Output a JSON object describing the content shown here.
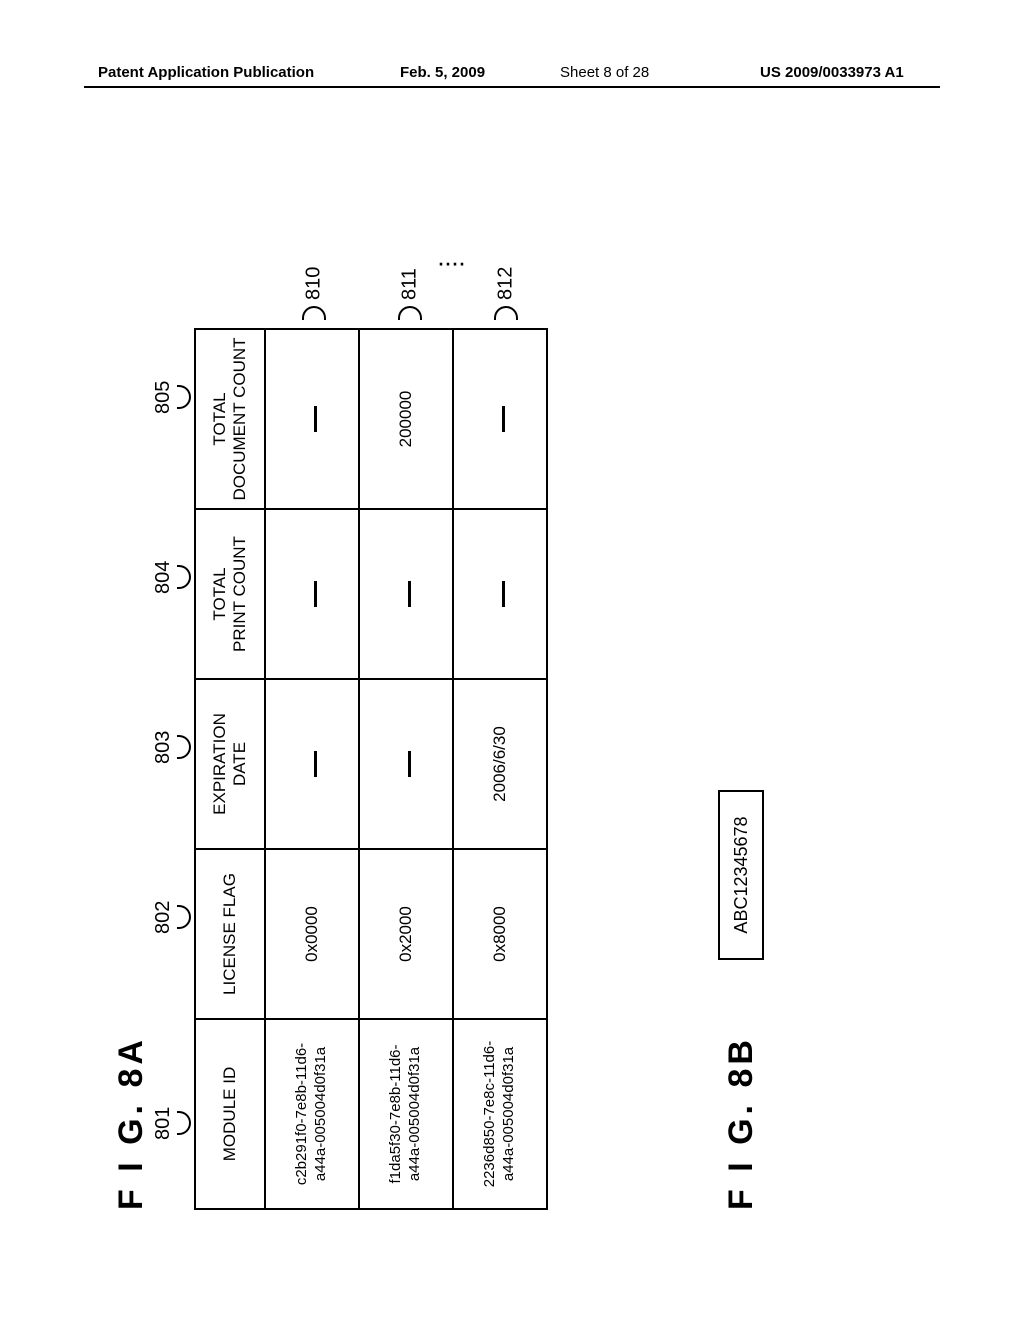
{
  "header": {
    "publication_label": "Patent Application Publication",
    "date": "Feb. 5, 2009",
    "sheet": "Sheet 8 of 28",
    "pub_number": "US 2009/0033973 A1"
  },
  "figA": {
    "title": "F I G.  8A",
    "col_labels": {
      "c1": "801",
      "c2": "802",
      "c3": "803",
      "c4": "804",
      "c5": "805"
    },
    "headers": {
      "module": "MODULE ID",
      "flag": "LICENSE FLAG",
      "exp": "EXPIRATION\nDATE",
      "print": "TOTAL\nPRINT COUNT",
      "doc": "TOTAL\nDOCUMENT COUNT"
    },
    "rows": [
      {
        "module": "c2b291f0-7e8b-11d6-\na44a-005004d0f31a",
        "flag": "0x0000",
        "exp": "",
        "print": "",
        "doc": "",
        "callout": "810"
      },
      {
        "module": "f1da5f30-7e8b-11d6-\na44a-005004d0f31a",
        "flag": "0x2000",
        "exp": "",
        "print": "",
        "doc": "200000",
        "callout": "811"
      },
      {
        "module": "2236d850-7e8c-11d6-\na44a-005004d0f31a",
        "flag": "0x8000",
        "exp": "2006/6/30",
        "print": "",
        "doc": "",
        "callout": "812"
      }
    ],
    "ellipsis": "...."
  },
  "figB": {
    "title": "F I G.  8B",
    "value": "ABC12345678"
  }
}
